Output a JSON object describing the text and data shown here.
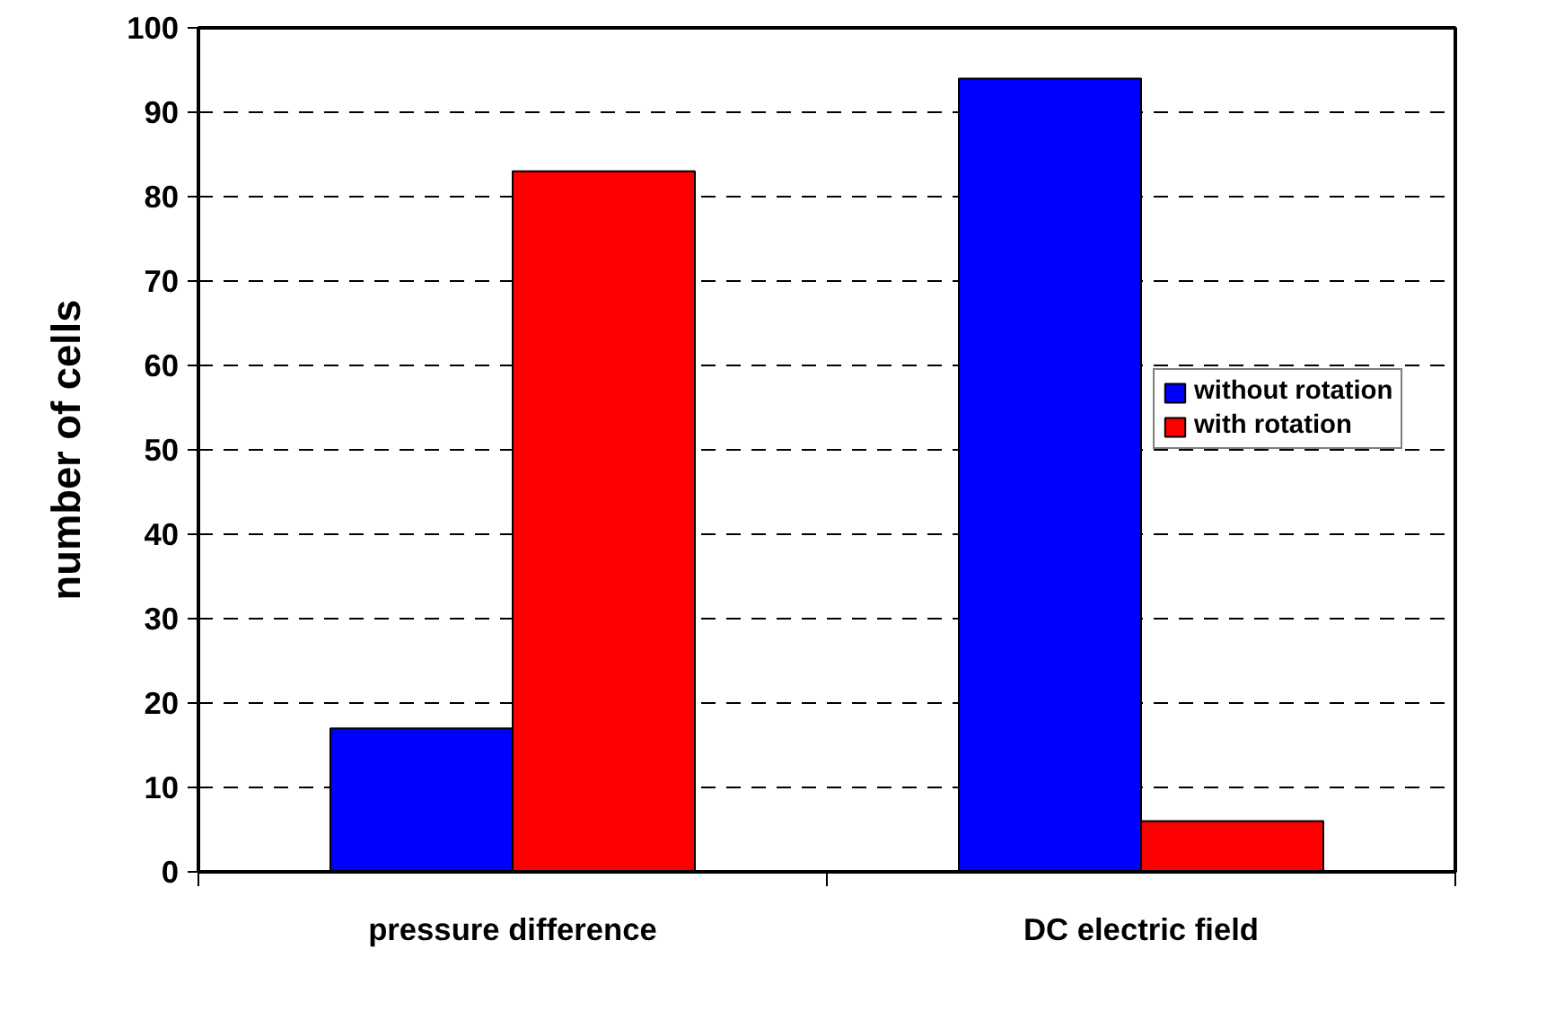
{
  "chart_data": {
    "type": "bar",
    "ylabel": "number of cells",
    "categories": [
      "pressure difference",
      "DC electric field"
    ],
    "series": [
      {
        "name": "without rotation",
        "color": "#0000ff",
        "values": [
          17,
          94
        ]
      },
      {
        "name": "with rotation",
        "color": "#ff0000",
        "values": [
          83,
          6
        ]
      }
    ],
    "ylim": [
      0,
      100
    ],
    "yticks": [
      0,
      10,
      20,
      30,
      40,
      50,
      60,
      70,
      80,
      90,
      100
    ],
    "grid": "y",
    "legend": "right"
  }
}
